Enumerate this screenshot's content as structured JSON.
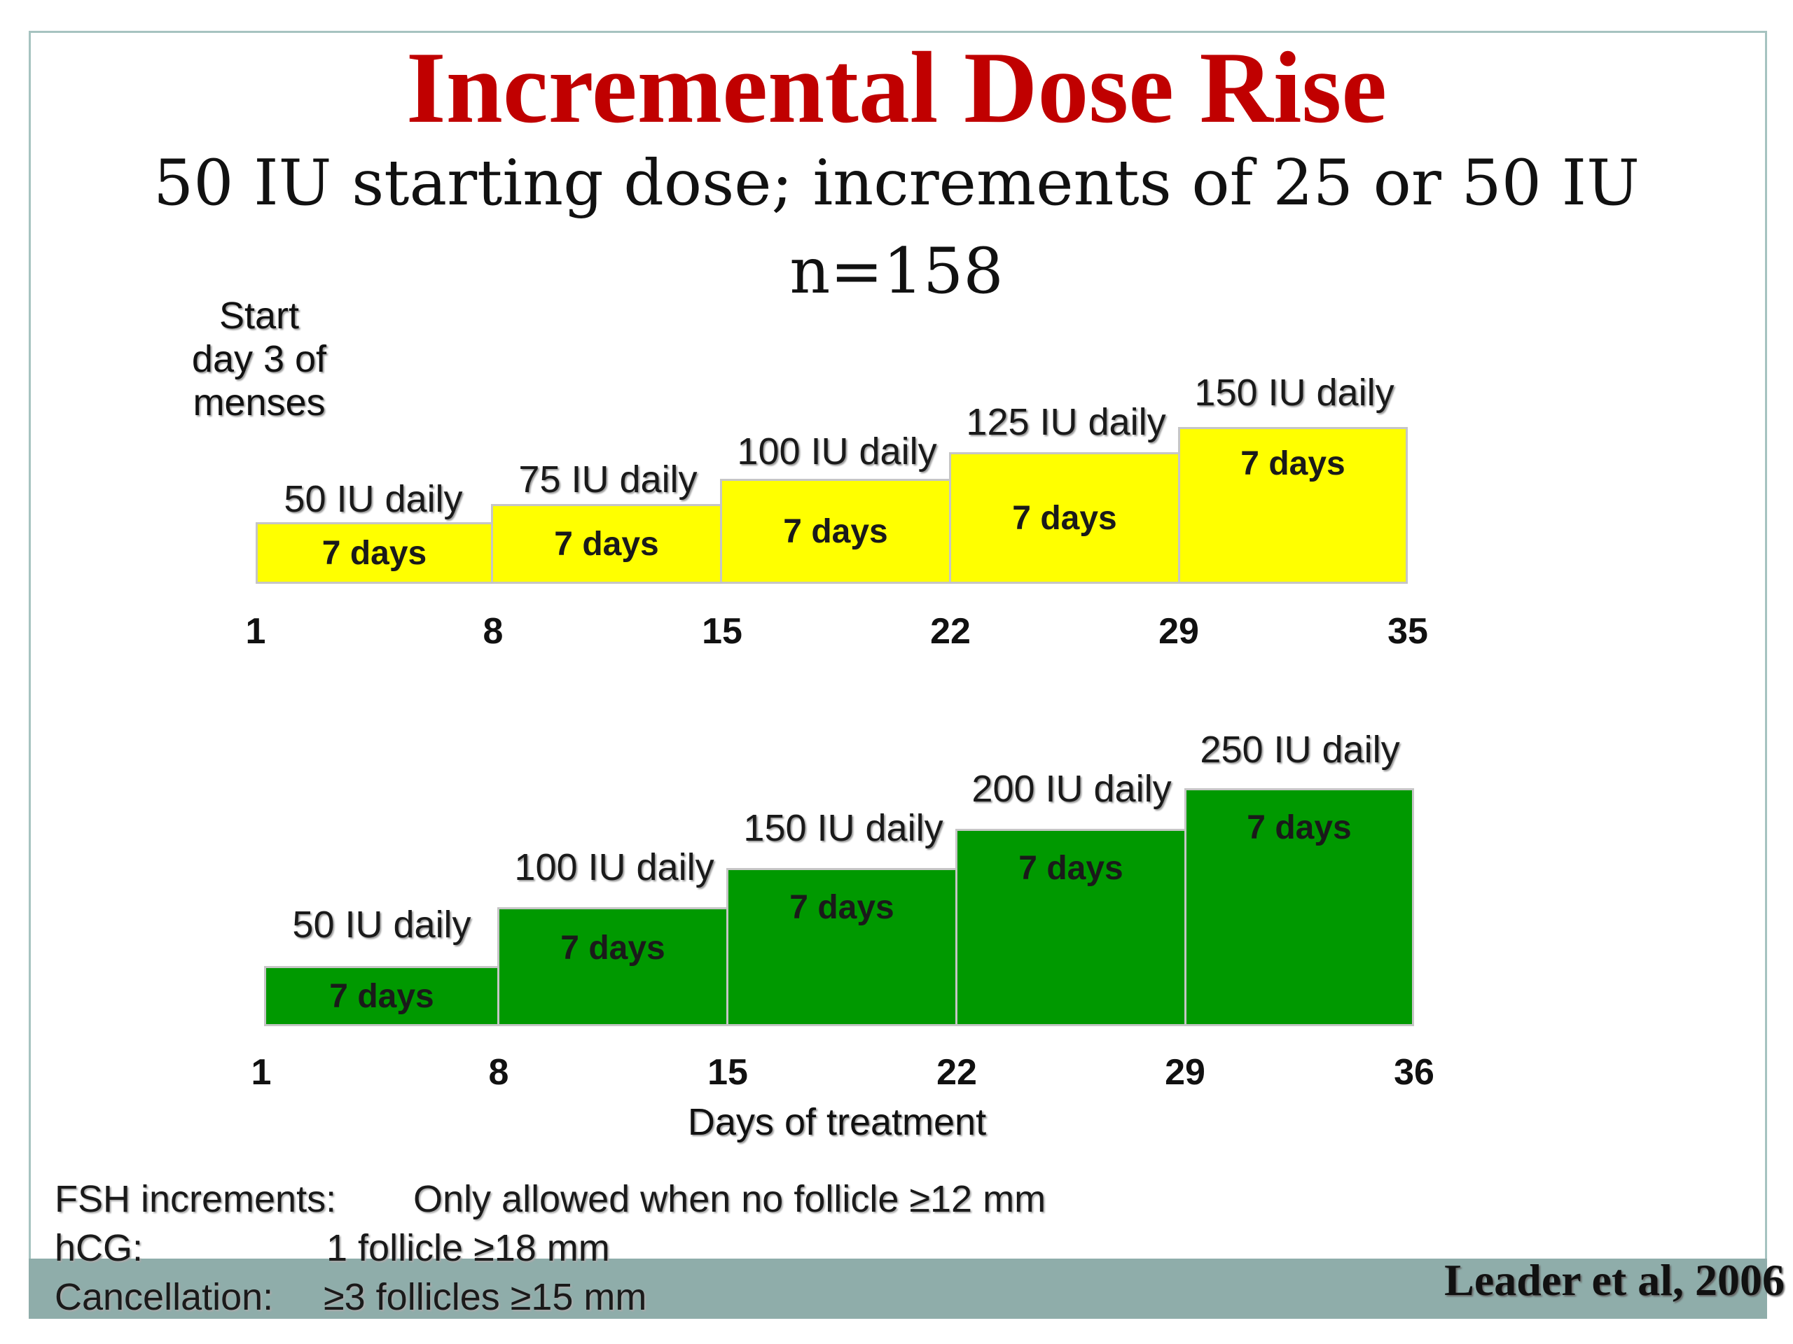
{
  "title": "Incremental Dose Rise",
  "subtitle_line1": "50 IU starting dose; increments of 25 or 50 IU",
  "subtitle_line2": "n=158",
  "start_note": [
    "Start",
    "day 3 of",
    "menses"
  ],
  "colors": {
    "title": "#c00000",
    "protocol_a": "#ffff00",
    "protocol_b": "#009900"
  },
  "protocol_a": {
    "steps": [
      {
        "dose": "50 IU daily",
        "duration": "7 days"
      },
      {
        "dose": "75 IU daily",
        "duration": "7 days"
      },
      {
        "dose": "100 IU daily",
        "duration": "7 days"
      },
      {
        "dose": "125 IU daily",
        "duration": "7 days"
      },
      {
        "dose": "150 IU daily",
        "duration": "7 days"
      }
    ],
    "day_ticks": [
      "1",
      "8",
      "15",
      "22",
      "29",
      "35"
    ]
  },
  "protocol_b": {
    "steps": [
      {
        "dose": "50 IU daily",
        "duration": "7 days"
      },
      {
        "dose": "100 IU daily",
        "duration": "7 days"
      },
      {
        "dose": "150 IU daily",
        "duration": "7 days"
      },
      {
        "dose": "200 IU daily",
        "duration": "7 days"
      },
      {
        "dose": "250 IU daily",
        "duration": "7 days"
      }
    ],
    "day_ticks": [
      "1",
      "8",
      "15",
      "22",
      "29",
      "36"
    ]
  },
  "x_axis_label": "Days of treatment",
  "criteria": {
    "fsh_label": "FSH increments:",
    "fsh_value": "Only allowed when no follicle  ≥12 mm",
    "hcg_label": "hCG:",
    "hcg_value": "1 follicle ≥18 mm",
    "cancel_label": "Cancellation:",
    "cancel_value": "≥3 follicles ≥15 mm"
  },
  "citation": "Leader et al, 2006"
}
